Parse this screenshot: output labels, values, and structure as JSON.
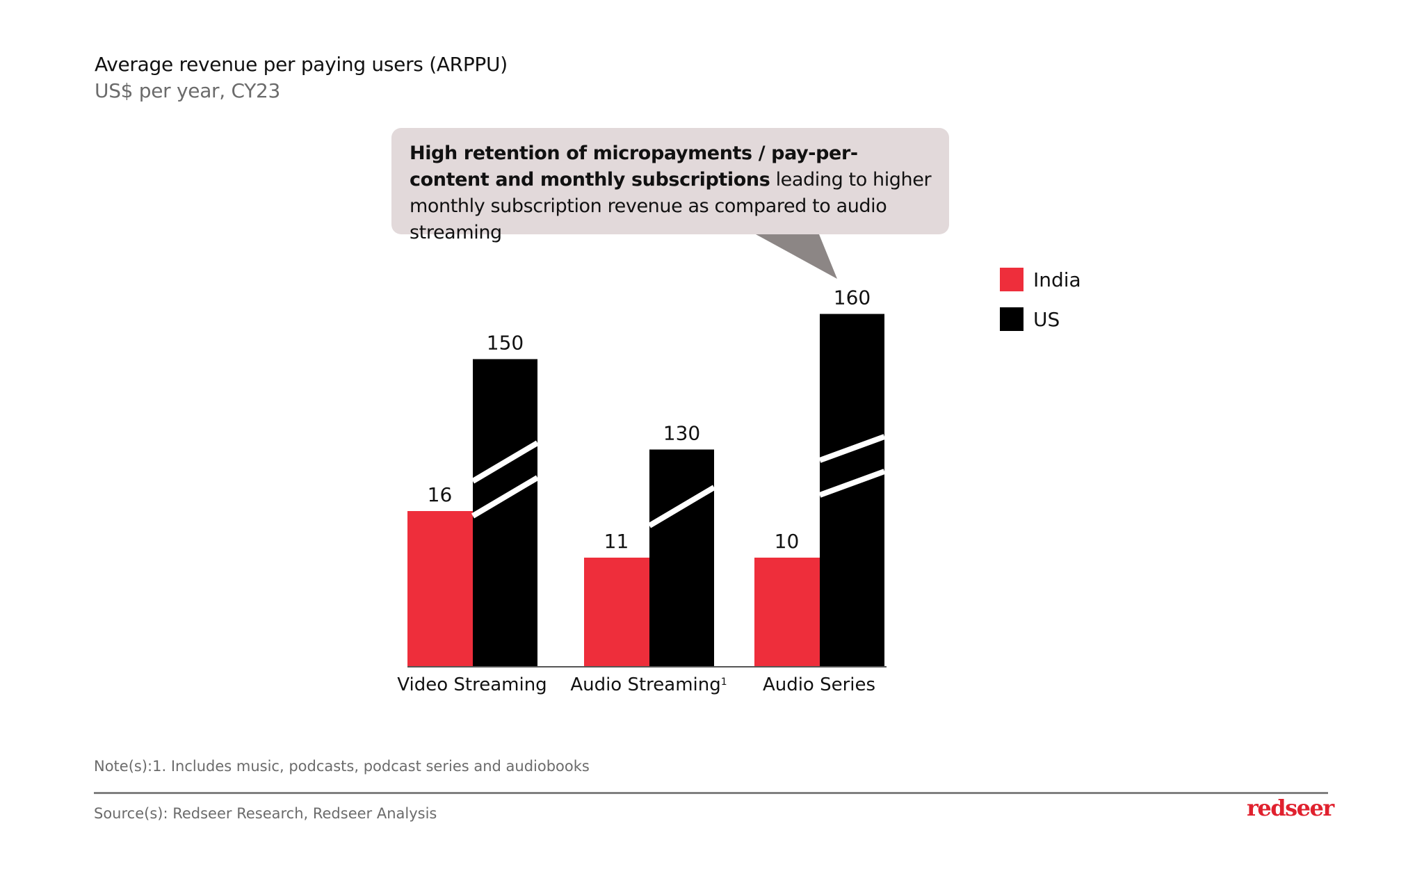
{
  "header": {
    "title": "Average revenue per paying users (ARPPU)",
    "subtitle": "US$ per year, CY23"
  },
  "callout": {
    "bold_text": "High retention of micropayments / pay-per-content and monthly subscriptions",
    "regular_text": " leading to higher monthly subscription revenue as compared to audio streaming"
  },
  "colors": {
    "india": "#ee2e3b",
    "us": "#000000",
    "callout_bg": "#e2d9da",
    "callout_pointer": "#8c8685",
    "brand": "#e0212e"
  },
  "chart_data": {
    "type": "bar",
    "title": "Average revenue per paying users (ARPPU)",
    "subtitle": "US$ per year, CY23",
    "xlabel": "",
    "ylabel": "US$ per year",
    "categories": [
      "Video Streaming",
      "Audio Streaming",
      "Audio Series"
    ],
    "category_superscripts": [
      "",
      "1",
      ""
    ],
    "series": [
      {
        "name": "India",
        "color": "#ee2e3b",
        "values": [
          16,
          11,
          10
        ]
      },
      {
        "name": "US",
        "color": "#000000",
        "values": [
          150,
          130,
          160
        ]
      }
    ],
    "axis_break": true,
    "us_break_marks": [
      2,
      1,
      2
    ],
    "legend": {
      "placement": "right",
      "entries": [
        "India",
        "US"
      ]
    },
    "grid": false,
    "annotations": [
      "High retention of micropayments / pay-per-content and monthly subscriptions leading to higher monthly subscription revenue as compared to audio streaming"
    ]
  },
  "footer": {
    "note": "Note(s):1. Includes music, podcasts, podcast series and audiobooks",
    "source": "Source(s): Redseer Research, Redseer Analysis",
    "logo": "redseer"
  }
}
